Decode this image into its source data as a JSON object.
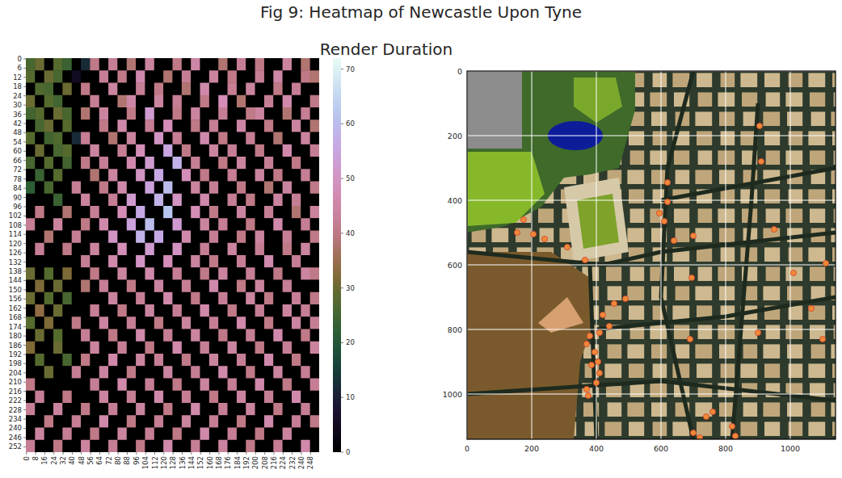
{
  "title": "Fig 9: Heatmap of Newcastle Upon Tyne",
  "chart_data": [
    {
      "type": "heatmap",
      "title": "Render Duration",
      "xlim": [
        0,
        256
      ],
      "ylim": [
        0,
        256
      ],
      "x_edges": [
        0,
        8,
        16,
        24,
        32,
        40,
        48,
        56,
        64,
        72,
        80,
        88,
        96,
        104,
        112,
        120,
        128,
        136,
        144,
        152,
        160,
        168,
        176,
        184,
        192,
        200,
        208,
        216,
        224,
        232,
        240,
        248,
        256
      ],
      "y_edges": [
        0,
        8,
        16,
        24,
        32,
        40,
        48,
        56,
        64,
        72,
        80,
        88,
        96,
        104,
        112,
        120,
        128,
        136,
        144,
        152,
        160,
        168,
        176,
        184,
        192,
        200,
        208,
        216,
        224,
        232,
        240,
        248,
        256
      ],
      "xticks": [
        0,
        8,
        16,
        24,
        32,
        40,
        48,
        56,
        64,
        72,
        80,
        88,
        96,
        104,
        112,
        120,
        128,
        136,
        144,
        152,
        160,
        168,
        176,
        184,
        192,
        200,
        208,
        216,
        224,
        232,
        240,
        248
      ],
      "yticks": [
        0,
        6,
        12,
        18,
        24,
        30,
        36,
        42,
        48,
        54,
        60,
        66,
        72,
        78,
        84,
        90,
        96,
        102,
        108,
        114,
        120,
        126,
        132,
        138,
        144,
        150,
        156,
        162,
        168,
        174,
        180,
        186,
        192,
        198,
        204,
        210,
        216,
        222,
        228,
        234,
        240,
        246,
        252
      ],
      "color_range": [
        0,
        72
      ],
      "color_ticks": [
        0,
        10,
        20,
        30,
        40,
        50,
        60,
        70
      ],
      "cells": [
        [
          26,
          30,
          0,
          28,
          24,
          0,
          12,
          40,
          0,
          42,
          0,
          38,
          0,
          44,
          0,
          0,
          40,
          0,
          45,
          0,
          0,
          38,
          0,
          42,
          0,
          40,
          0,
          0,
          44,
          0,
          38,
          0
        ],
        [
          28,
          0,
          30,
          26,
          0,
          5,
          0,
          0,
          42,
          0,
          40,
          0,
          46,
          0,
          0,
          38,
          0,
          42,
          0,
          0,
          44,
          0,
          40,
          0,
          0,
          42,
          0,
          45,
          0,
          0,
          40,
          38
        ],
        [
          0,
          27,
          26,
          0,
          30,
          0,
          40,
          0,
          0,
          44,
          0,
          0,
          42,
          0,
          40,
          0,
          0,
          38,
          0,
          46,
          0,
          0,
          42,
          0,
          44,
          0,
          0,
          40,
          0,
          42,
          0,
          0
        ],
        [
          30,
          0,
          28,
          25,
          0,
          0,
          0,
          42,
          0,
          0,
          38,
          45,
          0,
          0,
          44,
          0,
          42,
          0,
          0,
          40,
          0,
          48,
          0,
          38,
          0,
          0,
          42,
          0,
          46,
          0,
          0,
          40
        ],
        [
          25,
          28,
          0,
          30,
          26,
          0,
          38,
          0,
          44,
          0,
          0,
          40,
          0,
          52,
          0,
          0,
          40,
          0,
          44,
          0,
          0,
          42,
          0,
          0,
          40,
          44,
          0,
          0,
          38,
          0,
          42,
          0
        ],
        [
          0,
          26,
          30,
          0,
          28,
          0,
          0,
          0,
          40,
          0,
          46,
          0,
          0,
          42,
          0,
          48,
          0,
          0,
          40,
          0,
          42,
          0,
          0,
          45,
          0,
          0,
          40,
          0,
          0,
          44,
          0,
          38
        ],
        [
          28,
          0,
          25,
          27,
          0,
          12,
          42,
          0,
          0,
          38,
          0,
          44,
          0,
          0,
          50,
          0,
          42,
          0,
          0,
          46,
          0,
          40,
          0,
          0,
          42,
          0,
          0,
          38,
          0,
          0,
          44,
          0
        ],
        [
          0,
          30,
          0,
          26,
          28,
          0,
          0,
          44,
          0,
          0,
          42,
          0,
          48,
          0,
          0,
          55,
          0,
          40,
          0,
          0,
          44,
          0,
          42,
          0,
          0,
          40,
          0,
          0,
          46,
          0,
          0,
          42
        ],
        [
          26,
          0,
          28,
          0,
          25,
          0,
          40,
          0,
          42,
          0,
          0,
          46,
          0,
          52,
          0,
          0,
          58,
          0,
          42,
          0,
          0,
          40,
          0,
          44,
          0,
          0,
          42,
          0,
          0,
          40,
          0,
          0
        ],
        [
          0,
          24,
          0,
          28,
          0,
          0,
          0,
          38,
          0,
          44,
          0,
          0,
          50,
          0,
          56,
          0,
          0,
          48,
          0,
          40,
          0,
          0,
          42,
          0,
          0,
          44,
          0,
          40,
          0,
          0,
          42,
          0
        ],
        [
          22,
          0,
          26,
          0,
          0,
          42,
          0,
          0,
          40,
          0,
          46,
          0,
          0,
          54,
          0,
          60,
          0,
          0,
          44,
          0,
          42,
          0,
          0,
          40,
          0,
          0,
          38,
          0,
          44,
          0,
          0,
          40
        ],
        [
          0,
          0,
          0,
          24,
          0,
          0,
          44,
          0,
          0,
          42,
          0,
          52,
          0,
          0,
          58,
          0,
          50,
          0,
          0,
          46,
          0,
          0,
          42,
          0,
          40,
          0,
          0,
          44,
          0,
          42,
          0,
          0
        ],
        [
          0,
          40,
          0,
          0,
          38,
          0,
          0,
          42,
          0,
          0,
          48,
          0,
          56,
          0,
          0,
          62,
          0,
          0,
          48,
          0,
          40,
          0,
          0,
          44,
          0,
          0,
          42,
          0,
          0,
          38,
          0,
          44
        ],
        [
          42,
          0,
          0,
          44,
          0,
          0,
          40,
          0,
          46,
          0,
          0,
          54,
          0,
          60,
          0,
          0,
          52,
          0,
          0,
          44,
          0,
          42,
          0,
          0,
          40,
          0,
          0,
          46,
          0,
          0,
          42,
          0
        ],
        [
          0,
          0,
          38,
          0,
          0,
          42,
          0,
          0,
          0,
          50,
          0,
          0,
          58,
          0,
          56,
          0,
          0,
          46,
          0,
          0,
          42,
          0,
          0,
          40,
          0,
          44,
          0,
          0,
          42,
          0,
          0,
          40
        ],
        [
          0,
          42,
          0,
          0,
          40,
          0,
          0,
          44,
          0,
          0,
          48,
          0,
          0,
          52,
          0,
          0,
          50,
          0,
          0,
          42,
          0,
          0,
          44,
          0,
          0,
          42,
          0,
          0,
          40,
          0,
          44,
          0
        ],
        [
          0,
          0,
          0,
          0,
          0,
          0,
          42,
          0,
          0,
          46,
          0,
          0,
          50,
          0,
          0,
          48,
          0,
          0,
          44,
          0,
          40,
          0,
          0,
          42,
          0,
          0,
          46,
          0,
          0,
          42,
          0,
          0
        ],
        [
          30,
          0,
          28,
          0,
          32,
          0,
          0,
          40,
          0,
          0,
          44,
          0,
          0,
          46,
          0,
          0,
          42,
          0,
          0,
          40,
          0,
          44,
          0,
          0,
          42,
          0,
          0,
          40,
          0,
          0,
          44,
          40
        ],
        [
          0,
          32,
          0,
          30,
          0,
          0,
          38,
          0,
          42,
          0,
          0,
          40,
          0,
          0,
          44,
          0,
          0,
          42,
          0,
          0,
          46,
          0,
          0,
          40,
          0,
          44,
          0,
          0,
          42,
          0,
          0,
          0
        ],
        [
          30,
          0,
          28,
          0,
          26,
          0,
          0,
          0,
          0,
          44,
          0,
          0,
          42,
          0,
          0,
          46,
          0,
          0,
          40,
          0,
          0,
          42,
          0,
          0,
          44,
          0,
          40,
          0,
          0,
          42,
          0,
          40
        ],
        [
          0,
          34,
          0,
          30,
          0,
          0,
          0,
          42,
          0,
          0,
          40,
          0,
          0,
          44,
          0,
          0,
          42,
          0,
          0,
          46,
          0,
          0,
          40,
          0,
          0,
          42,
          0,
          0,
          44,
          0,
          42,
          0
        ],
        [
          28,
          0,
          32,
          0,
          0,
          40,
          0,
          0,
          44,
          0,
          0,
          42,
          0,
          0,
          40,
          0,
          0,
          44,
          0,
          0,
          42,
          0,
          0,
          46,
          0,
          0,
          40,
          0,
          0,
          44,
          0,
          42
        ],
        [
          0,
          30,
          0,
          28,
          0,
          0,
          42,
          0,
          0,
          40,
          0,
          0,
          46,
          0,
          0,
          42,
          0,
          0,
          44,
          0,
          0,
          40,
          0,
          0,
          42,
          0,
          0,
          46,
          0,
          0,
          40,
          0
        ],
        [
          32,
          0,
          0,
          30,
          0,
          0,
          0,
          44,
          0,
          0,
          42,
          0,
          0,
          40,
          0,
          0,
          46,
          0,
          0,
          42,
          0,
          0,
          44,
          0,
          0,
          40,
          0,
          0,
          42,
          0,
          0,
          44
        ],
        [
          0,
          28,
          0,
          0,
          26,
          0,
          40,
          0,
          0,
          46,
          0,
          0,
          44,
          0,
          42,
          0,
          0,
          40,
          0,
          0,
          44,
          0,
          0,
          42,
          0,
          0,
          46,
          0,
          0,
          40,
          0,
          0
        ],
        [
          0,
          0,
          30,
          0,
          0,
          42,
          0,
          0,
          44,
          0,
          0,
          40,
          0,
          0,
          0,
          44,
          0,
          0,
          42,
          0,
          0,
          46,
          0,
          0,
          40,
          0,
          0,
          44,
          0,
          0,
          42,
          0
        ],
        [
          40,
          0,
          0,
          0,
          0,
          0,
          0,
          42,
          0,
          0,
          46,
          0,
          0,
          42,
          0,
          0,
          40,
          0,
          0,
          44,
          0,
          0,
          42,
          0,
          0,
          46,
          0,
          0,
          40,
          0,
          0,
          42
        ],
        [
          0,
          42,
          0,
          0,
          40,
          0,
          0,
          0,
          44,
          0,
          0,
          42,
          0,
          0,
          46,
          0,
          0,
          42,
          0,
          0,
          40,
          0,
          0,
          44,
          0,
          0,
          42,
          0,
          0,
          46,
          0,
          0
        ],
        [
          42,
          0,
          0,
          44,
          0,
          0,
          40,
          0,
          0,
          42,
          0,
          0,
          44,
          0,
          0,
          40,
          0,
          0,
          46,
          0,
          0,
          42,
          0,
          0,
          44,
          0,
          0,
          40,
          0,
          0,
          42,
          0
        ],
        [
          0,
          0,
          40,
          0,
          0,
          42,
          0,
          0,
          46,
          0,
          0,
          40,
          0,
          0,
          42,
          0,
          0,
          44,
          0,
          0,
          42,
          0,
          0,
          40,
          0,
          0,
          46,
          0,
          0,
          42,
          0,
          40
        ],
        [
          0,
          44,
          0,
          0,
          42,
          0,
          0,
          40,
          0,
          0,
          44,
          0,
          0,
          42,
          0,
          0,
          40,
          0,
          0,
          46,
          0,
          0,
          42,
          0,
          0,
          40,
          0,
          0,
          44,
          0,
          0,
          0
        ],
        [
          42,
          0,
          0,
          40,
          0,
          0,
          44,
          0,
          0,
          42,
          0,
          0,
          40,
          0,
          0,
          46,
          0,
          0,
          42,
          0,
          0,
          44,
          0,
          0,
          40,
          0,
          0,
          42,
          0,
          0,
          46,
          0
        ]
      ]
    },
    {
      "type": "scatter",
      "grid": true,
      "xlim": [
        0,
        1140
      ],
      "ylim": [
        0,
        1140
      ],
      "xticks": [
        0,
        200,
        400,
        600,
        800,
        1000
      ],
      "yticks": [
        0,
        200,
        400,
        600,
        800,
        1000
      ],
      "series": [
        {
          "color": "#f0883a",
          "marker": "circle",
          "x": [
            175,
            155,
            205,
            240,
            310,
            365,
            620,
            620,
            595,
            610,
            640,
            700,
            905,
            910,
            950,
            1110,
            1010,
            1065,
            1100,
            695,
            690,
            490,
            455,
            420,
            440,
            410,
            380,
            370,
            395,
            385,
            405,
            410,
            400,
            370,
            375,
            760,
            740,
            700,
            720,
            820,
            830,
            900
          ],
          "values": [
            460,
            500,
            505,
            520,
            545,
            585,
            345,
            405,
            440,
            465,
            525,
            510,
            170,
            280,
            490,
            595,
            625,
            735,
            830,
            640,
            830,
            705,
            720,
            755,
            790,
            810,
            820,
            845,
            870,
            910,
            900,
            935,
            965,
            985,
            1005,
            1055,
            1070,
            1120,
            1135,
            1100,
            1130,
            810
          ]
        }
      ]
    }
  ]
}
